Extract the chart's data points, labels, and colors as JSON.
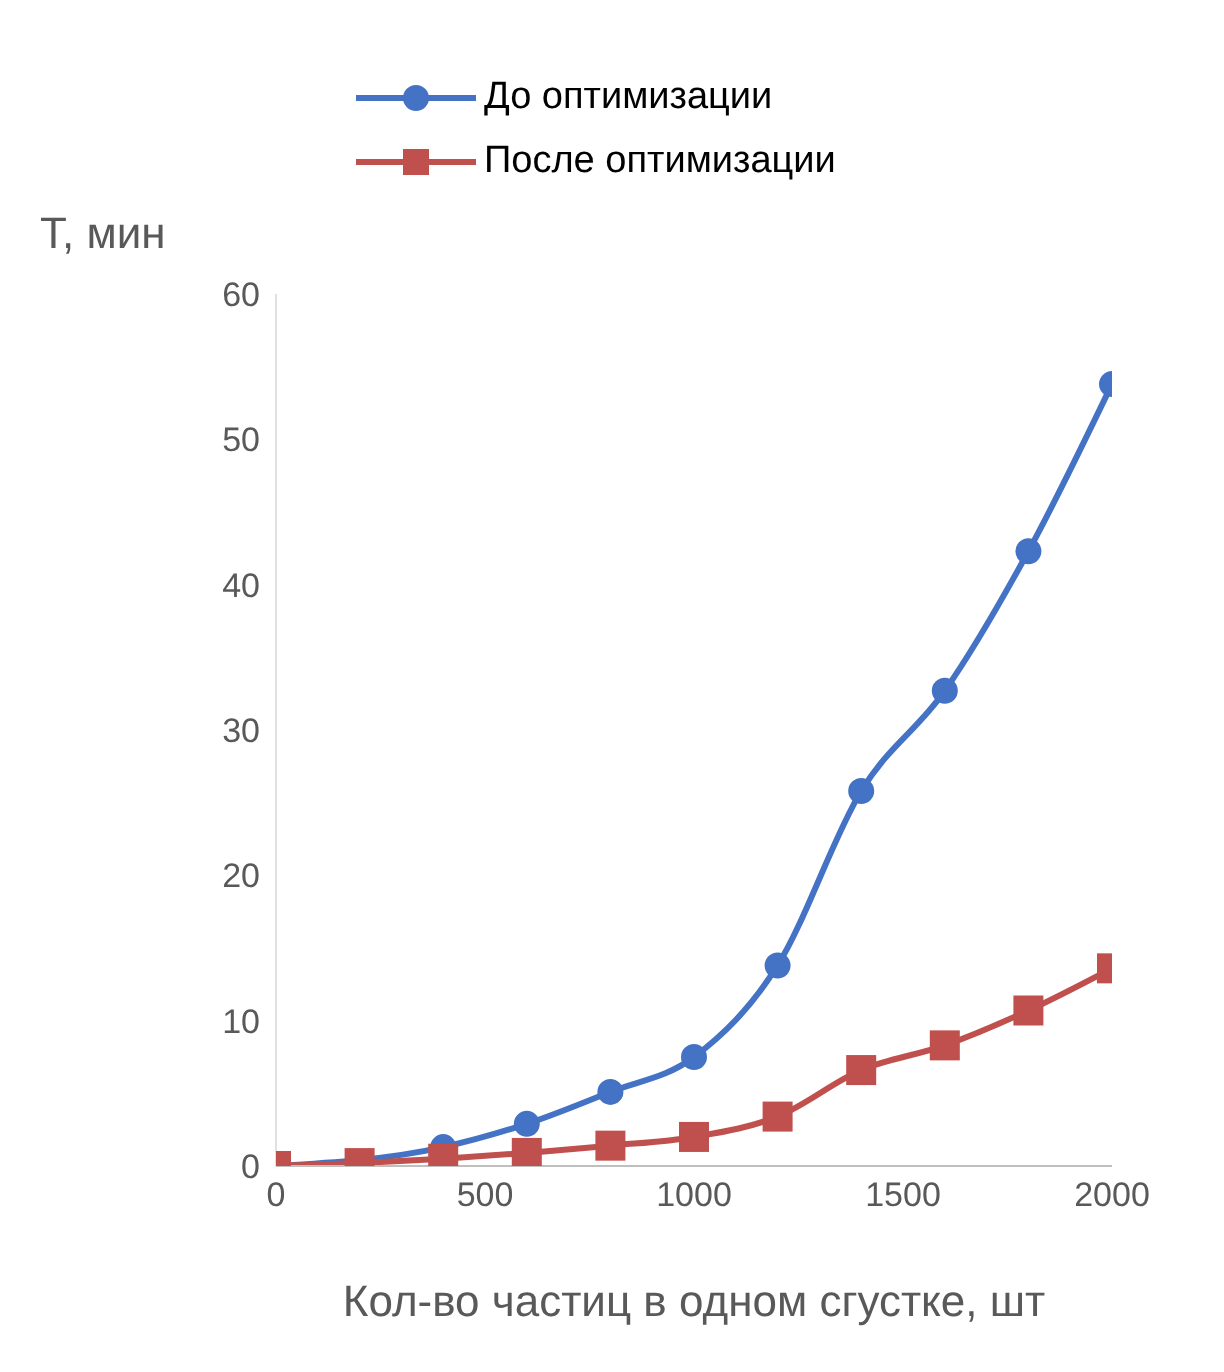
{
  "chart_data": {
    "type": "line",
    "xlabel": "Кол-во частиц в одном сгустке, шт",
    "ylabel": "T, мин",
    "x": [
      0,
      200,
      400,
      600,
      800,
      1000,
      1200,
      1400,
      1600,
      1800,
      2000
    ],
    "series": [
      {
        "name": "До оптимизации",
        "color": "#4472c4",
        "marker": "circle",
        "values": [
          0,
          null,
          1.3,
          2.9,
          5.1,
          7.5,
          13.8,
          25.8,
          32.7,
          42.3,
          53.8
        ]
      },
      {
        "name": "После оптимизации",
        "color": "#c0504d",
        "marker": "square",
        "values": [
          0,
          0.2,
          0.5,
          0.9,
          1.4,
          2.0,
          3.4,
          6.6,
          8.3,
          10.7,
          13.6
        ]
      }
    ],
    "xlim": [
      0,
      2000
    ],
    "xticks": [
      0,
      500,
      1000,
      1500,
      2000
    ],
    "ylim": [
      0,
      60
    ],
    "yticks": [
      0,
      10,
      20,
      30,
      40,
      50,
      60
    ],
    "legend": "top",
    "grid": false
  }
}
